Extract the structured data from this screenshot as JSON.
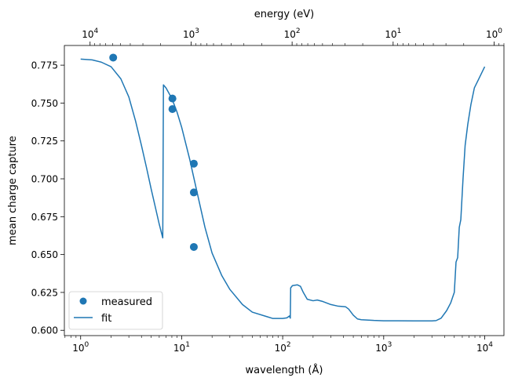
{
  "chart_data": {
    "type": "line",
    "xlabel": "wavelength (Å)",
    "ylabel": "mean charge capture",
    "x2label": "energy (eV)",
    "xscale": "log",
    "x2scale": "log",
    "xlim": [
      0.69,
      15500
    ],
    "ylim": [
      0.5965,
      0.788
    ],
    "grid": false,
    "legend_position": "lower-left",
    "xticks": [
      {
        "value": 1,
        "base": "10",
        "exp": "0"
      },
      {
        "value": 10,
        "base": "10",
        "exp": "1"
      },
      {
        "value": 100,
        "base": "10",
        "exp": "2"
      },
      {
        "value": 1000,
        "base": "10",
        "exp": "3"
      },
      {
        "value": 10000,
        "base": "10",
        "exp": "4"
      }
    ],
    "x2ticks": [
      {
        "value": 10000,
        "base": "10",
        "exp": "4"
      },
      {
        "value": 1000,
        "base": "10",
        "exp": "3"
      },
      {
        "value": 100,
        "base": "10",
        "exp": "2"
      },
      {
        "value": 10,
        "base": "10",
        "exp": "1"
      },
      {
        "value": 1,
        "base": "10",
        "exp": "0"
      }
    ],
    "yticks": [
      {
        "value": 0.6,
        "label": "0.600"
      },
      {
        "value": 0.625,
        "label": "0.625"
      },
      {
        "value": 0.65,
        "label": "0.650"
      },
      {
        "value": 0.675,
        "label": "0.675"
      },
      {
        "value": 0.7,
        "label": "0.700"
      },
      {
        "value": 0.725,
        "label": "0.725"
      },
      {
        "value": 0.75,
        "label": "0.750"
      },
      {
        "value": 0.775,
        "label": "0.775"
      }
    ],
    "series": [
      {
        "name": "measured",
        "kind": "scatter",
        "color": "#1f77b4",
        "points": [
          {
            "x": 2.1,
            "y": 0.78
          },
          {
            "x": 8.1,
            "y": 0.753
          },
          {
            "x": 8.1,
            "y": 0.746
          },
          {
            "x": 13.2,
            "y": 0.71
          },
          {
            "x": 13.2,
            "y": 0.691
          },
          {
            "x": 13.2,
            "y": 0.655
          }
        ]
      },
      {
        "name": "fit",
        "kind": "line",
        "color": "#1f77b4",
        "points": [
          {
            "x": 1.0,
            "y": 0.779
          },
          {
            "x": 1.3,
            "y": 0.7785
          },
          {
            "x": 1.6,
            "y": 0.777
          },
          {
            "x": 2.0,
            "y": 0.774
          },
          {
            "x": 2.5,
            "y": 0.766
          },
          {
            "x": 3.0,
            "y": 0.754
          },
          {
            "x": 3.5,
            "y": 0.738
          },
          {
            "x": 4.0,
            "y": 0.722
          },
          {
            "x": 4.5,
            "y": 0.707
          },
          {
            "x": 5.0,
            "y": 0.693
          },
          {
            "x": 5.5,
            "y": 0.681
          },
          {
            "x": 6.0,
            "y": 0.67
          },
          {
            "x": 6.5,
            "y": 0.661
          },
          {
            "x": 6.6,
            "y": 0.762
          },
          {
            "x": 7.0,
            "y": 0.76
          },
          {
            "x": 8.0,
            "y": 0.753
          },
          {
            "x": 9.0,
            "y": 0.744
          },
          {
            "x": 10.0,
            "y": 0.734
          },
          {
            "x": 12.0,
            "y": 0.713
          },
          {
            "x": 14.0,
            "y": 0.693
          },
          {
            "x": 17.0,
            "y": 0.668
          },
          {
            "x": 20.0,
            "y": 0.651
          },
          {
            "x": 25.0,
            "y": 0.636
          },
          {
            "x": 30.0,
            "y": 0.627
          },
          {
            "x": 40.0,
            "y": 0.617
          },
          {
            "x": 50.0,
            "y": 0.612
          },
          {
            "x": 70.0,
            "y": 0.609
          },
          {
            "x": 80.0,
            "y": 0.6078
          },
          {
            "x": 100.0,
            "y": 0.6078
          },
          {
            "x": 110.0,
            "y": 0.6082
          },
          {
            "x": 117.0,
            "y": 0.6095
          },
          {
            "x": 119.0,
            "y": 0.608
          },
          {
            "x": 120.0,
            "y": 0.628
          },
          {
            "x": 125.0,
            "y": 0.6295
          },
          {
            "x": 140.0,
            "y": 0.63
          },
          {
            "x": 150.0,
            "y": 0.629
          },
          {
            "x": 160.0,
            "y": 0.625
          },
          {
            "x": 175.0,
            "y": 0.6205
          },
          {
            "x": 200.0,
            "y": 0.6195
          },
          {
            "x": 220.0,
            "y": 0.62
          },
          {
            "x": 250.0,
            "y": 0.619
          },
          {
            "x": 300.0,
            "y": 0.617
          },
          {
            "x": 350.0,
            "y": 0.616
          },
          {
            "x": 420.0,
            "y": 0.6155
          },
          {
            "x": 450.0,
            "y": 0.614
          },
          {
            "x": 500.0,
            "y": 0.61
          },
          {
            "x": 550.0,
            "y": 0.6075
          },
          {
            "x": 600.0,
            "y": 0.607
          },
          {
            "x": 800.0,
            "y": 0.6065
          },
          {
            "x": 1000.0,
            "y": 0.6063
          },
          {
            "x": 2000.0,
            "y": 0.6062
          },
          {
            "x": 3000.0,
            "y": 0.6062
          },
          {
            "x": 3300.0,
            "y": 0.6064
          },
          {
            "x": 3700.0,
            "y": 0.608
          },
          {
            "x": 4200.0,
            "y": 0.613
          },
          {
            "x": 4600.0,
            "y": 0.618
          },
          {
            "x": 5000.0,
            "y": 0.625
          },
          {
            "x": 5200.0,
            "y": 0.645
          },
          {
            "x": 5400.0,
            "y": 0.648
          },
          {
            "x": 5600.0,
            "y": 0.668
          },
          {
            "x": 5800.0,
            "y": 0.673
          },
          {
            "x": 6100.0,
            "y": 0.7
          },
          {
            "x": 6400.0,
            "y": 0.722
          },
          {
            "x": 6800.0,
            "y": 0.736
          },
          {
            "x": 7300.0,
            "y": 0.749
          },
          {
            "x": 7900.0,
            "y": 0.76
          },
          {
            "x": 8600.0,
            "y": 0.765
          },
          {
            "x": 10000.0,
            "y": 0.774
          }
        ]
      }
    ],
    "legend": [
      {
        "label": "measured",
        "marker": "circle"
      },
      {
        "label": "fit",
        "marker": "line"
      }
    ]
  }
}
